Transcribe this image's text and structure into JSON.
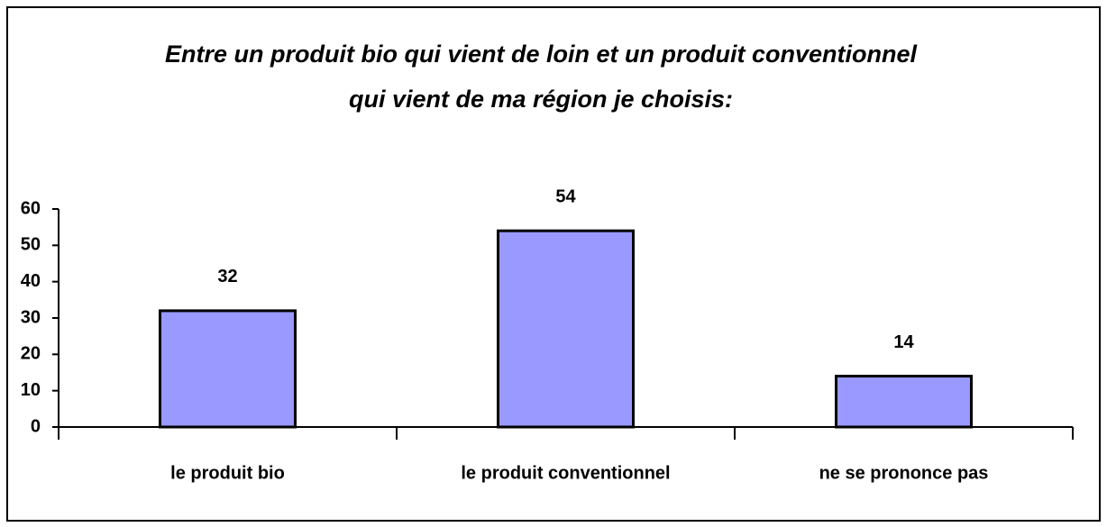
{
  "chart_data": {
    "type": "bar",
    "title": [
      "Entre un produit bio qui vient de loin et un produit conventionnel",
      "qui vient de ma région je choisis:"
    ],
    "categories": [
      "le produit bio",
      "le produit conventionnel",
      "ne se prononce pas"
    ],
    "values": [
      32,
      54,
      14
    ],
    "color": "#9999ff",
    "ylim": [
      0,
      60
    ],
    "yticks": [
      0,
      10,
      20,
      30,
      40,
      50,
      60
    ],
    "grid": false
  }
}
